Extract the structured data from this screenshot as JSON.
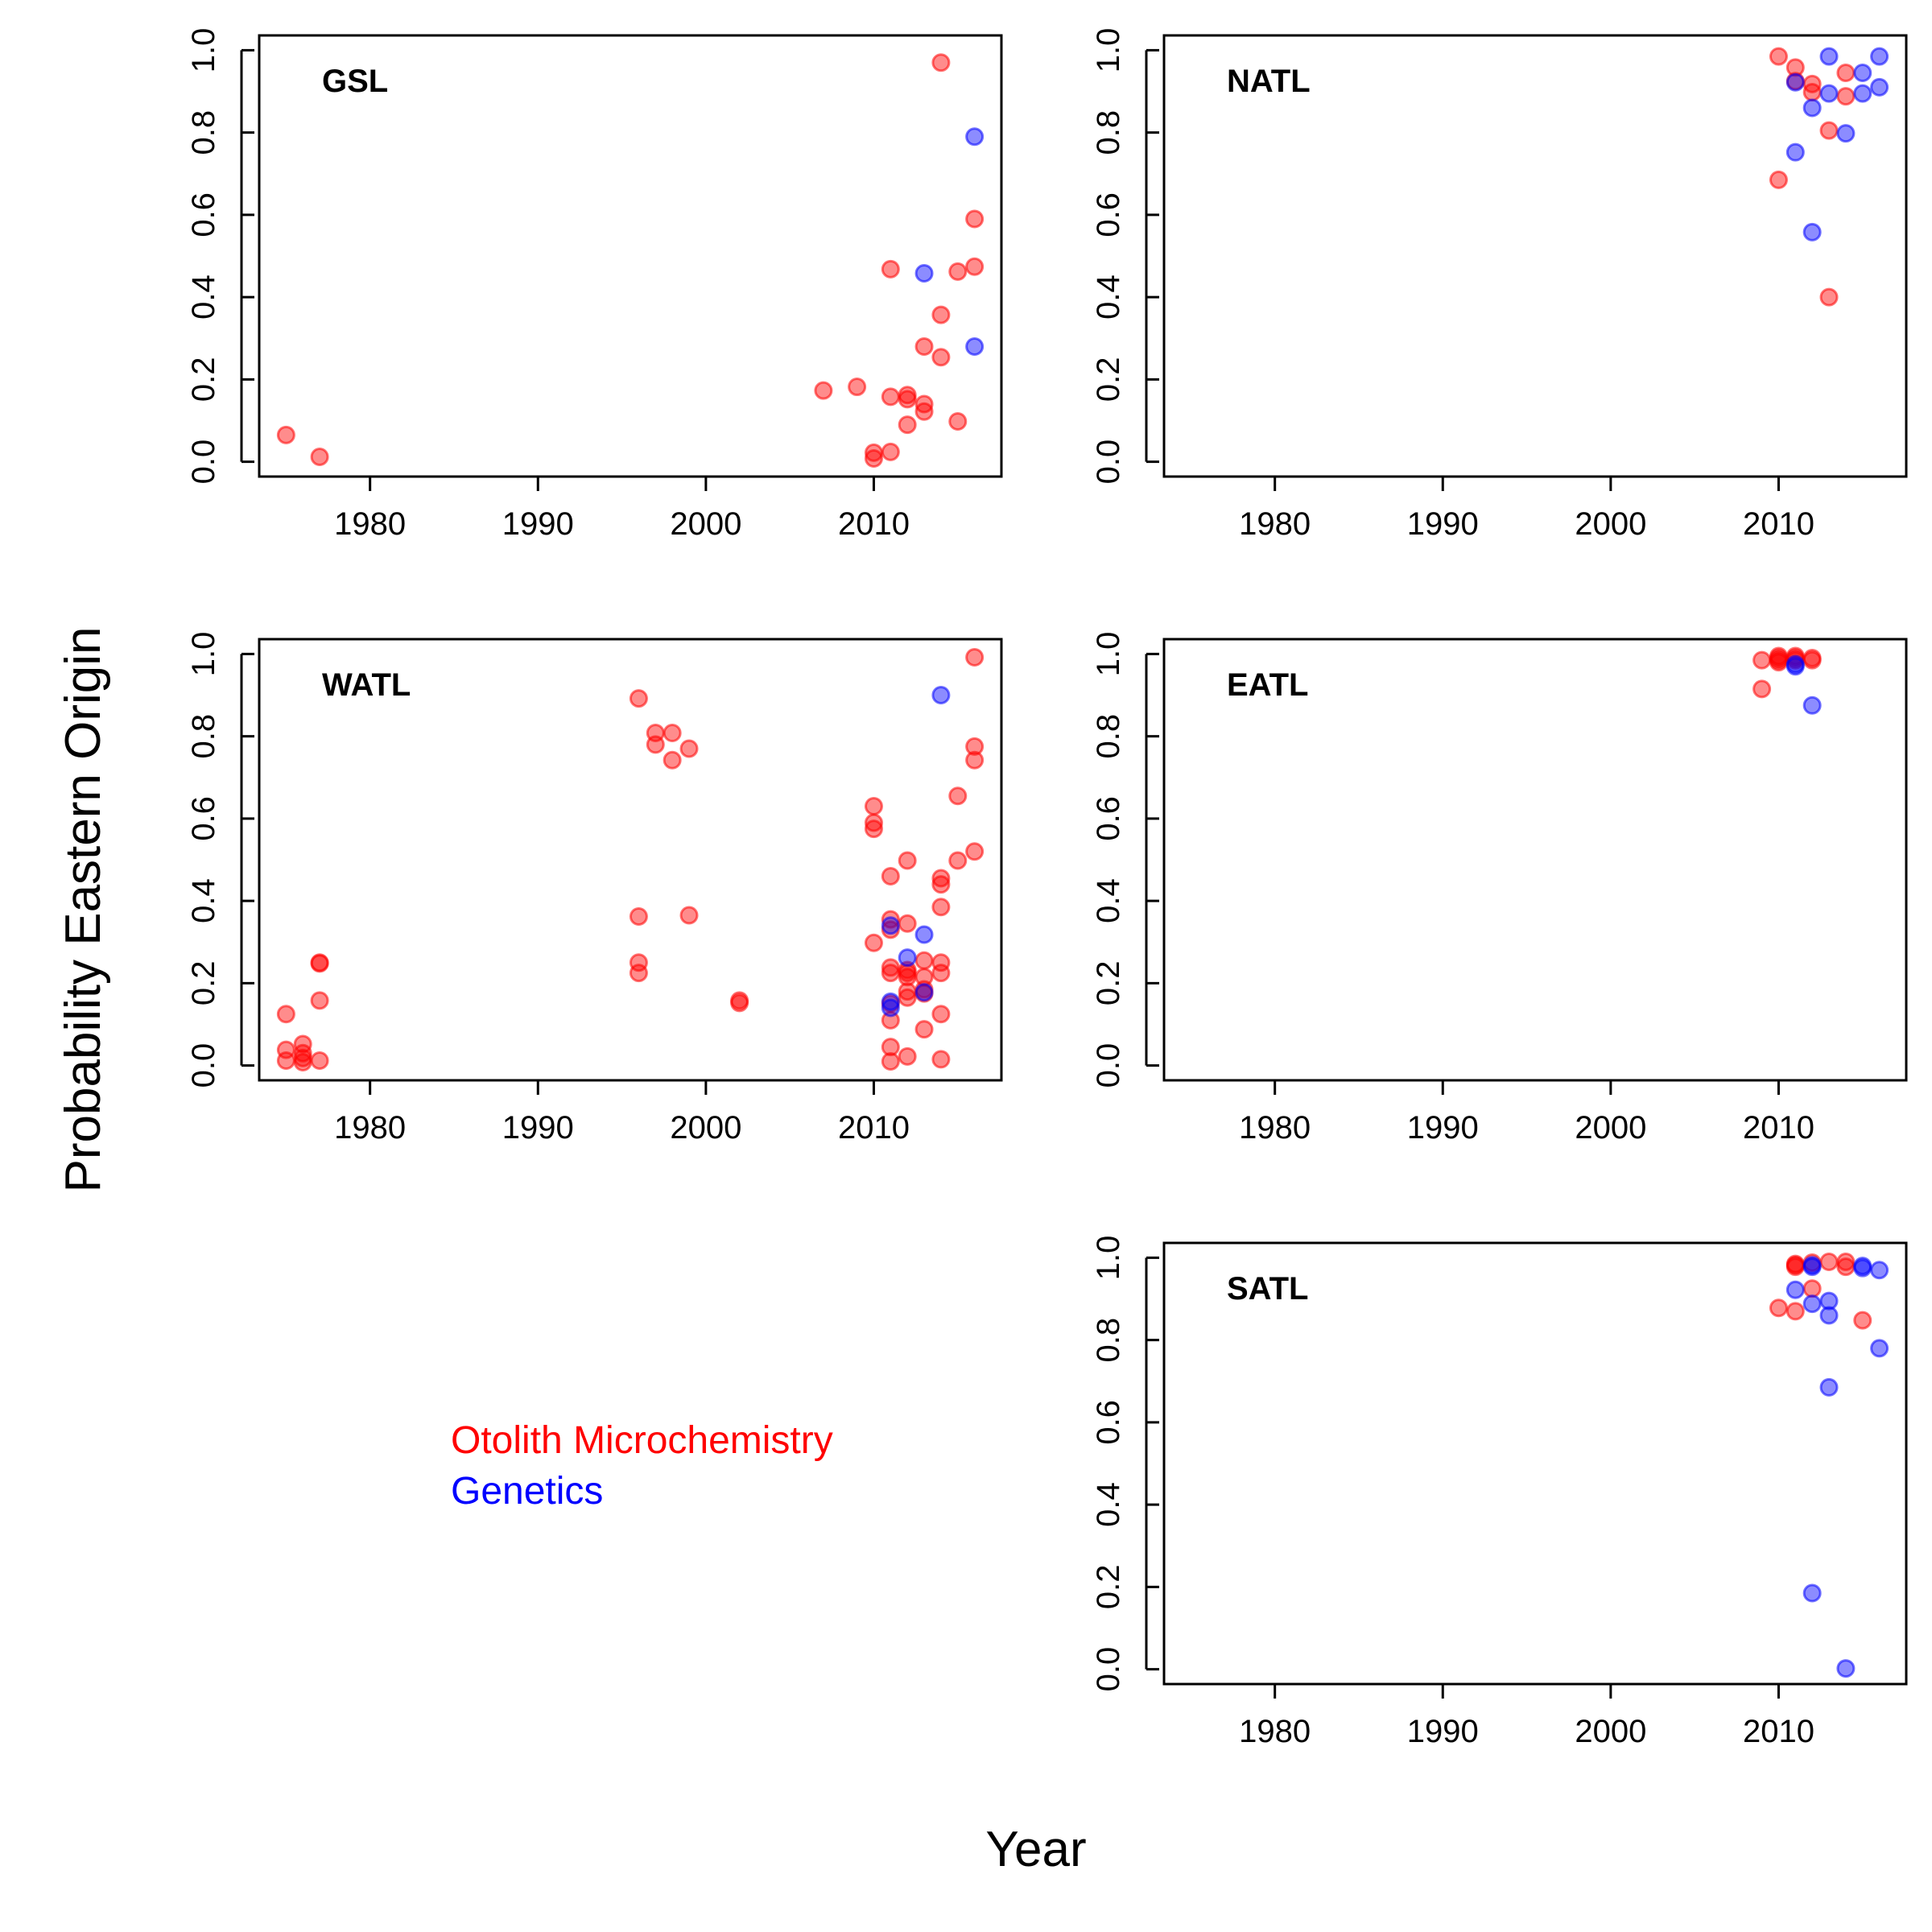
{
  "figure": {
    "ylabel": "Probability Eastern Origin",
    "xlabel": "Year"
  },
  "legend": {
    "items": [
      {
        "label": "Otolith Microchemistry",
        "color": "#ff0000"
      },
      {
        "label": "Genetics",
        "color": "#0000ff"
      }
    ]
  },
  "colors": {
    "otolith": "#ff0000",
    "genetics": "#0000ff"
  },
  "chart_data": [
    {
      "type": "scatter",
      "title": "GSL",
      "xlim": [
        1973.4,
        2017.6
      ],
      "ylim": [
        -0.036,
        1.036
      ],
      "xticks": [
        1980,
        1990,
        2000,
        2010
      ],
      "yticks": [
        0.0,
        0.2,
        0.4,
        0.6,
        0.8,
        1.0
      ],
      "series": [
        {
          "name": "Otolith Microchemistry",
          "color": "#ff0000",
          "points": [
            [
              1975,
              0.065
            ],
            [
              1977,
              0.012
            ],
            [
              2007,
              0.173
            ],
            [
              2009,
              0.182
            ],
            [
              2010,
              0.022
            ],
            [
              2010,
              0.008
            ],
            [
              2011,
              0.468
            ],
            [
              2011,
              0.158
            ],
            [
              2011,
              0.024
            ],
            [
              2012,
              0.162
            ],
            [
              2012,
              0.152
            ],
            [
              2012,
              0.09
            ],
            [
              2013,
              0.28
            ],
            [
              2013,
              0.14
            ],
            [
              2013,
              0.122
            ],
            [
              2014,
              0.97
            ],
            [
              2014,
              0.357
            ],
            [
              2014,
              0.254
            ],
            [
              2015,
              0.462
            ],
            [
              2015,
              0.098
            ],
            [
              2016,
              0.59
            ],
            [
              2016,
              0.474
            ]
          ]
        },
        {
          "name": "Genetics",
          "color": "#0000ff",
          "points": [
            [
              2013,
              0.458
            ],
            [
              2016,
              0.79
            ],
            [
              2016,
              0.28
            ]
          ]
        }
      ]
    },
    {
      "type": "scatter",
      "title": "NATL",
      "xlim": [
        1973.4,
        2017.6
      ],
      "ylim": [
        -0.036,
        1.036
      ],
      "xticks": [
        1980,
        1990,
        2000,
        2010
      ],
      "yticks": [
        0.0,
        0.2,
        0.4,
        0.6,
        0.8,
        1.0
      ],
      "series": [
        {
          "name": "Otolith Microchemistry",
          "color": "#ff0000",
          "points": [
            [
              2010,
              0.985
            ],
            [
              2010,
              0.685
            ],
            [
              2011,
              0.958
            ],
            [
              2011,
              0.925
            ],
            [
              2012,
              0.918
            ],
            [
              2012,
              0.898
            ],
            [
              2013,
              0.805
            ],
            [
              2013,
              0.4
            ],
            [
              2014,
              0.945
            ],
            [
              2014,
              0.888
            ]
          ]
        },
        {
          "name": "Genetics",
          "color": "#0000ff",
          "points": [
            [
              2011,
              0.922
            ],
            [
              2011,
              0.752
            ],
            [
              2012,
              0.86
            ],
            [
              2012,
              0.558
            ],
            [
              2013,
              0.985
            ],
            [
              2013,
              0.895
            ],
            [
              2014,
              0.798
            ],
            [
              2015,
              0.945
            ],
            [
              2015,
              0.895
            ],
            [
              2016,
              0.985
            ],
            [
              2016,
              0.91
            ]
          ]
        }
      ]
    },
    {
      "type": "scatter",
      "title": "WATL",
      "xlim": [
        1973.4,
        2017.6
      ],
      "ylim": [
        -0.036,
        1.036
      ],
      "xticks": [
        1980,
        1990,
        2000,
        2010
      ],
      "yticks": [
        0.0,
        0.2,
        0.4,
        0.6,
        0.8,
        1.0
      ],
      "series": [
        {
          "name": "Otolith Microchemistry",
          "color": "#ff0000",
          "points": [
            [
              1975,
              0.125
            ],
            [
              1975,
              0.038
            ],
            [
              1975,
              0.012
            ],
            [
              1976,
              0.052
            ],
            [
              1976,
              0.03
            ],
            [
              1976,
              0.018
            ],
            [
              1976,
              0.008
            ],
            [
              1977,
              0.25
            ],
            [
              1977,
              0.248
            ],
            [
              1977,
              0.158
            ],
            [
              1977,
              0.012
            ],
            [
              1996,
              0.892
            ],
            [
              1996,
              0.362
            ],
            [
              1996,
              0.25
            ],
            [
              1996,
              0.225
            ],
            [
              1997,
              0.808
            ],
            [
              1997,
              0.78
            ],
            [
              1998,
              0.808
            ],
            [
              1998,
              0.742
            ],
            [
              1999,
              0.77
            ],
            [
              1999,
              0.365
            ],
            [
              2002,
              0.158
            ],
            [
              2002,
              0.152
            ],
            [
              2010,
              0.63
            ],
            [
              2010,
              0.59
            ],
            [
              2010,
              0.575
            ],
            [
              2010,
              0.298
            ],
            [
              2011,
              0.46
            ],
            [
              2011,
              0.355
            ],
            [
              2011,
              0.33
            ],
            [
              2011,
              0.238
            ],
            [
              2011,
              0.225
            ],
            [
              2011,
              0.15
            ],
            [
              2011,
              0.11
            ],
            [
              2011,
              0.045
            ],
            [
              2011,
              0.01
            ],
            [
              2012,
              0.498
            ],
            [
              2012,
              0.345
            ],
            [
              2012,
              0.232
            ],
            [
              2012,
              0.225
            ],
            [
              2012,
              0.215
            ],
            [
              2012,
              0.18
            ],
            [
              2012,
              0.165
            ],
            [
              2012,
              0.022
            ],
            [
              2013,
              0.255
            ],
            [
              2013,
              0.215
            ],
            [
              2013,
              0.185
            ],
            [
              2013,
              0.175
            ],
            [
              2013,
              0.088
            ],
            [
              2014,
              0.455
            ],
            [
              2014,
              0.44
            ],
            [
              2014,
              0.385
            ],
            [
              2014,
              0.25
            ],
            [
              2014,
              0.225
            ],
            [
              2014,
              0.125
            ],
            [
              2014,
              0.015
            ],
            [
              2015,
              0.655
            ],
            [
              2015,
              0.498
            ],
            [
              2016,
              0.992
            ],
            [
              2016,
              0.775
            ],
            [
              2016,
              0.742
            ],
            [
              2016,
              0.52
            ]
          ]
        },
        {
          "name": "Genetics",
          "color": "#0000ff",
          "points": [
            [
              2011,
              0.34
            ],
            [
              2011,
              0.155
            ],
            [
              2011,
              0.14
            ],
            [
              2012,
              0.262
            ],
            [
              2013,
              0.318
            ],
            [
              2013,
              0.178
            ],
            [
              2014,
              0.9
            ]
          ]
        }
      ]
    },
    {
      "type": "scatter",
      "title": "EATL",
      "xlim": [
        1973.4,
        2017.6
      ],
      "ylim": [
        -0.036,
        1.036
      ],
      "xticks": [
        1980,
        1990,
        2000,
        2010
      ],
      "yticks": [
        0.0,
        0.2,
        0.4,
        0.6,
        0.8,
        1.0
      ],
      "series": [
        {
          "name": "Otolith Microchemistry",
          "color": "#ff0000",
          "points": [
            [
              2009,
              0.985
            ],
            [
              2009,
              0.915
            ],
            [
              2010,
              0.995
            ],
            [
              2010,
              0.99
            ],
            [
              2010,
              0.985
            ],
            [
              2010,
              0.98
            ],
            [
              2011,
              0.995
            ],
            [
              2011,
              0.99
            ],
            [
              2011,
              0.985
            ],
            [
              2012,
              0.99
            ],
            [
              2012,
              0.985
            ]
          ]
        },
        {
          "name": "Genetics",
          "color": "#0000ff",
          "points": [
            [
              2011,
              0.975
            ],
            [
              2011,
              0.97
            ],
            [
              2012,
              0.875
            ]
          ]
        }
      ]
    },
    {
      "type": "scatter",
      "title": "SATL",
      "xlim": [
        1973.4,
        2017.6
      ],
      "ylim": [
        -0.036,
        1.036
      ],
      "xticks": [
        1980,
        1990,
        2000,
        2010
      ],
      "yticks": [
        0.0,
        0.2,
        0.4,
        0.6,
        0.8,
        1.0
      ],
      "series": [
        {
          "name": "Otolith Microchemistry",
          "color": "#ff0000",
          "points": [
            [
              2010,
              0.878
            ],
            [
              2011,
              0.985
            ],
            [
              2011,
              0.982
            ],
            [
              2011,
              0.978
            ],
            [
              2011,
              0.87
            ],
            [
              2012,
              0.988
            ],
            [
              2012,
              0.925
            ],
            [
              2013,
              0.99
            ],
            [
              2014,
              0.99
            ],
            [
              2014,
              0.978
            ],
            [
              2015,
              0.848
            ]
          ]
        },
        {
          "name": "Genetics",
          "color": "#0000ff",
          "points": [
            [
              2011,
              0.922
            ],
            [
              2012,
              0.982
            ],
            [
              2012,
              0.978
            ],
            [
              2012,
              0.888
            ],
            [
              2012,
              0.185
            ],
            [
              2013,
              0.895
            ],
            [
              2013,
              0.86
            ],
            [
              2013,
              0.685
            ],
            [
              2014,
              0.002
            ],
            [
              2015,
              0.98
            ],
            [
              2015,
              0.975
            ],
            [
              2016,
              0.97
            ],
            [
              2016,
              0.78
            ]
          ]
        }
      ]
    }
  ]
}
